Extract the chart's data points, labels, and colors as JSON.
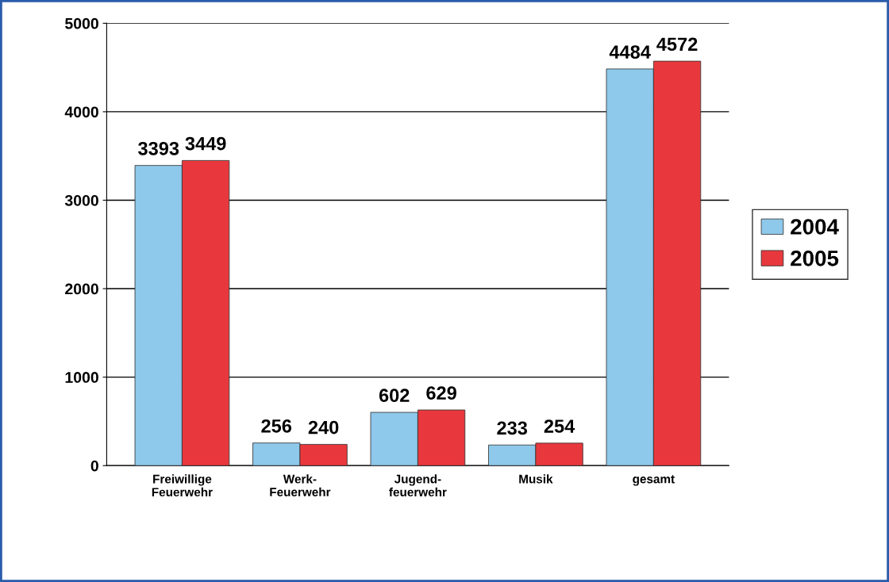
{
  "chart_data": {
    "type": "bar",
    "categories": [
      "Freiwillige\nFeuerwehr",
      "Werk-\nFeuerwehr",
      "Jugend-\nfeuerwehr",
      "Musik",
      "gesamt"
    ],
    "series": [
      {
        "name": "2004",
        "color": "#8ec8ea",
        "values": [
          3393,
          256,
          602,
          233,
          4484
        ]
      },
      {
        "name": "2005",
        "color": "#e8383d",
        "values": [
          3449,
          240,
          629,
          254,
          4572
        ]
      }
    ],
    "ylim": [
      0,
      5000
    ],
    "yticks": [
      0,
      1000,
      2000,
      3000,
      4000,
      5000
    ],
    "grid": "y",
    "legend": "right",
    "data_labels": true
  }
}
